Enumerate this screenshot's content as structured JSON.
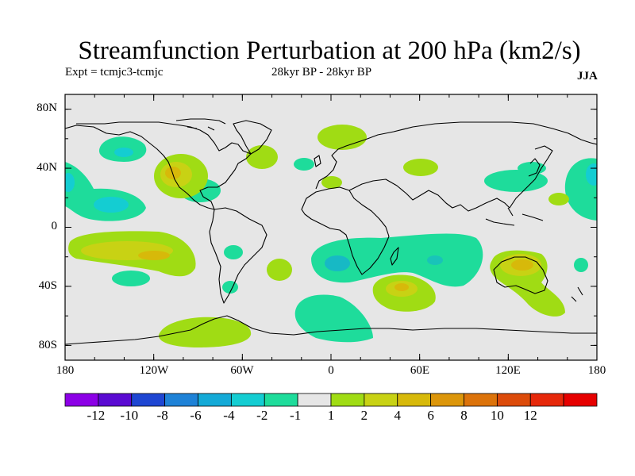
{
  "title": "Streamfunction Perturbation at 200 hPa (km2/s)",
  "experiment": "Expt = tcmjc3-tcmjc",
  "period": "28kyr BP - 28kyr BP",
  "season": "JJA",
  "map": {
    "projection": "cylindrical equidistant",
    "lon_range": [
      -180,
      180
    ],
    "lat_range": [
      -90,
      90
    ],
    "y_ticks": [
      "80N",
      "40N",
      "0",
      "40S",
      "80S"
    ],
    "x_ticks": [
      "180",
      "120W",
      "60W",
      "0",
      "60E",
      "120E",
      "180"
    ],
    "background_color": "#e6e6e6"
  },
  "colorbar": {
    "colors": [
      "#8c00e6",
      "#5a0ad2",
      "#1e46d2",
      "#1e82d7",
      "#14aad7",
      "#14cdd2",
      "#1edc9b",
      "#e6e6e6",
      "#a0dc14",
      "#c8d214",
      "#d7b90a",
      "#dc960a",
      "#dc730a",
      "#dc4b0a",
      "#e6280a",
      "#e60000"
    ],
    "labels": [
      "-12",
      "-10",
      "-8",
      "-6",
      "-4",
      "-2",
      "-1",
      "1",
      "2",
      "4",
      "6",
      "8",
      "10",
      "12"
    ]
  }
}
